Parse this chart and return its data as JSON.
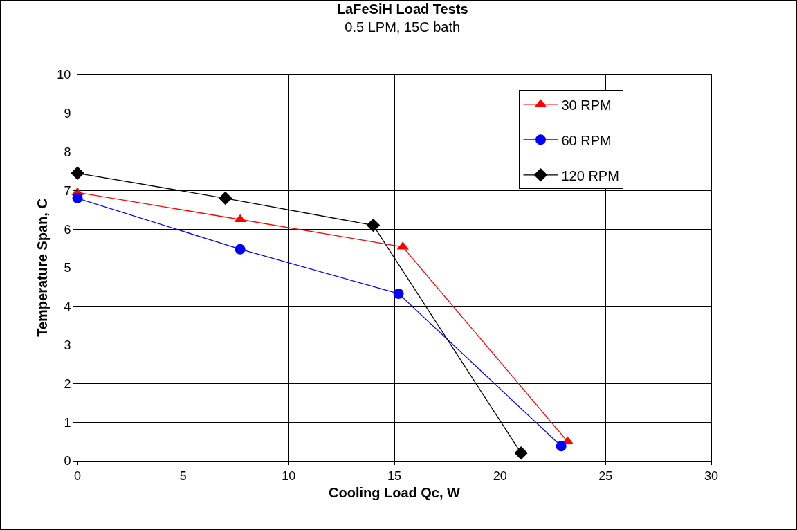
{
  "chart_data": {
    "type": "line",
    "title": "LaFeSiH Load Tests",
    "subtitle": "0.5 LPM, 15C bath",
    "xlabel": "Cooling Load Qc, W",
    "ylabel": "Temperature Span, C",
    "xlim": [
      0,
      30
    ],
    "xticks": [
      0,
      5,
      10,
      15,
      20,
      25,
      30
    ],
    "ylim": [
      0,
      10
    ],
    "yticks": [
      0,
      1,
      2,
      3,
      4,
      5,
      6,
      7,
      8,
      9,
      10
    ],
    "grid": true,
    "legend": "top right",
    "line_style": "solid",
    "series": [
      {
        "name": "30 RPM",
        "color": "#ff0000",
        "marker": "triangle",
        "x": [
          0,
          7.7,
          15.4,
          23.2
        ],
        "values": [
          6.95,
          6.25,
          5.54,
          0.5
        ]
      },
      {
        "name": "60 RPM",
        "color": "#0000ff",
        "marker": "circle",
        "x": [
          0,
          7.7,
          15.2,
          22.9
        ],
        "values": [
          6.8,
          5.48,
          4.33,
          0.38
        ]
      },
      {
        "name": "120 RPM",
        "color": "#000000",
        "marker": "diamond",
        "x": [
          0,
          7.0,
          14.0,
          21.0
        ],
        "values": [
          7.45,
          6.8,
          6.1,
          0.2
        ]
      }
    ]
  }
}
